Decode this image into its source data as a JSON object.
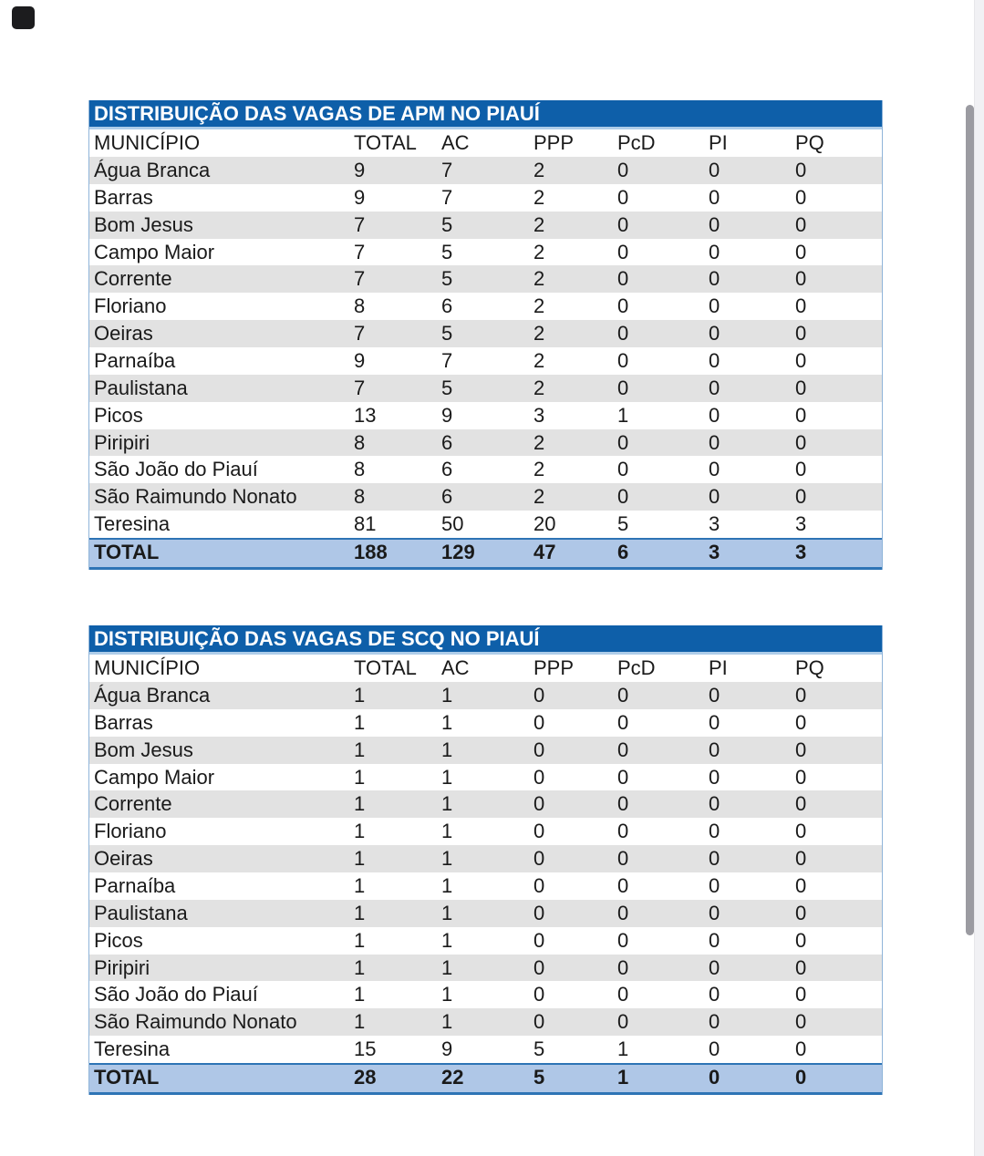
{
  "tables": [
    {
      "title": "DISTRIBUIÇÃO DAS VAGAS DE APM NO PIAUÍ",
      "columns": [
        "MUNICÍPIO",
        "TOTAL",
        "AC",
        "PPP",
        "PcD",
        "PI",
        "PQ"
      ],
      "rows": [
        [
          "Água Branca",
          "9",
          "7",
          "2",
          "0",
          "0",
          "0"
        ],
        [
          "Barras",
          "9",
          "7",
          "2",
          "0",
          "0",
          "0"
        ],
        [
          "Bom Jesus",
          "7",
          "5",
          "2",
          "0",
          "0",
          "0"
        ],
        [
          "Campo Maior",
          "7",
          "5",
          "2",
          "0",
          "0",
          "0"
        ],
        [
          "Corrente",
          "7",
          "5",
          "2",
          "0",
          "0",
          "0"
        ],
        [
          "Floriano",
          "8",
          "6",
          "2",
          "0",
          "0",
          "0"
        ],
        [
          "Oeiras",
          "7",
          "5",
          "2",
          "0",
          "0",
          "0"
        ],
        [
          "Parnaíba",
          "9",
          "7",
          "2",
          "0",
          "0",
          "0"
        ],
        [
          "Paulistana",
          "7",
          "5",
          "2",
          "0",
          "0",
          "0"
        ],
        [
          "Picos",
          "13",
          "9",
          "3",
          "1",
          "0",
          "0"
        ],
        [
          "Piripiri",
          "8",
          "6",
          "2",
          "0",
          "0",
          "0"
        ],
        [
          "São João do Piauí",
          "8",
          "6",
          "2",
          "0",
          "0",
          "0"
        ],
        [
          "São Raimundo Nonato",
          "8",
          "6",
          "2",
          "0",
          "0",
          "0"
        ],
        [
          "Teresina",
          "81",
          "50",
          "20",
          "5",
          "3",
          "3"
        ]
      ],
      "total_row": [
        "TOTAL",
        "188",
        "129",
        "47",
        "6",
        "3",
        "3"
      ]
    },
    {
      "title": "DISTRIBUIÇÃO DAS VAGAS DE SCQ NO PIAUÍ",
      "columns": [
        "MUNICÍPIO",
        "TOTAL",
        "AC",
        "PPP",
        "PcD",
        "PI",
        "PQ"
      ],
      "rows": [
        [
          "Água Branca",
          "1",
          "1",
          "0",
          "0",
          "0",
          "0"
        ],
        [
          "Barras",
          "1",
          "1",
          "0",
          "0",
          "0",
          "0"
        ],
        [
          "Bom Jesus",
          "1",
          "1",
          "0",
          "0",
          "0",
          "0"
        ],
        [
          "Campo Maior",
          "1",
          "1",
          "0",
          "0",
          "0",
          "0"
        ],
        [
          "Corrente",
          "1",
          "1",
          "0",
          "0",
          "0",
          "0"
        ],
        [
          "Floriano",
          "1",
          "1",
          "0",
          "0",
          "0",
          "0"
        ],
        [
          "Oeiras",
          "1",
          "1",
          "0",
          "0",
          "0",
          "0"
        ],
        [
          "Parnaíba",
          "1",
          "1",
          "0",
          "0",
          "0",
          "0"
        ],
        [
          "Paulistana",
          "1",
          "1",
          "0",
          "0",
          "0",
          "0"
        ],
        [
          "Picos",
          "1",
          "1",
          "0",
          "0",
          "0",
          "0"
        ],
        [
          "Piripiri",
          "1",
          "1",
          "0",
          "0",
          "0",
          "0"
        ],
        [
          "São João do Piauí",
          "1",
          "1",
          "0",
          "0",
          "0",
          "0"
        ],
        [
          "São Raimundo Nonato",
          "1",
          "1",
          "0",
          "0",
          "0",
          "0"
        ],
        [
          "Teresina",
          "15",
          "9",
          "5",
          "1",
          "0",
          "0"
        ]
      ],
      "total_row": [
        "TOTAL",
        "28",
        "22",
        "5",
        "1",
        "0",
        "0"
      ]
    }
  ],
  "colors": {
    "title_band": "#0e5fa9",
    "title_text": "#ffffff",
    "stripe_grey": "#e2e2e2",
    "total_row_bg": "#afc7e7",
    "total_row_border": "#2e74b5",
    "table_edge": "#8fb4d9",
    "scrollbar_thumb": "#9b9ba1",
    "scrollbar_track": "#f1f1f4",
    "corner_button": "#1c1c1e"
  }
}
